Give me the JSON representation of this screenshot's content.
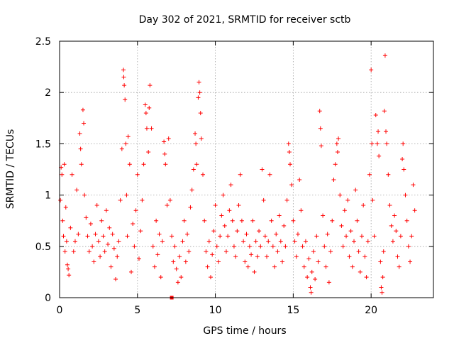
{
  "chart_data": {
    "type": "scatter",
    "title": "Day 302 of 2021, SRMTID for receiver sctb",
    "xlabel": "GPS time / hours",
    "ylabel": "SRMTID / TECUs",
    "xlim": [
      0,
      24
    ],
    "ylim": [
      0,
      2.5
    ],
    "xticks": [
      0,
      5,
      10,
      15,
      20
    ],
    "xtick_labels": [
      "0",
      "5",
      "10",
      "15",
      "20"
    ],
    "yticks": [
      0,
      0.5,
      1,
      1.5,
      2,
      2.5
    ],
    "ytick_labels": [
      "0",
      "0.5",
      "1",
      "1.5",
      "2",
      "2.5"
    ],
    "grid": true,
    "marker": "+",
    "color": "#ff0000",
    "series": [
      {
        "name": "SRMTID",
        "points": [
          [
            0.05,
            0.95
          ],
          [
            0.1,
            1.27
          ],
          [
            0.15,
            1.2
          ],
          [
            0.2,
            0.75
          ],
          [
            0.25,
            0.6
          ],
          [
            0.3,
            1.3
          ],
          [
            0.35,
            0.45
          ],
          [
            0.4,
            0.88
          ],
          [
            0.45,
            0.55
          ],
          [
            0.5,
            0.32
          ],
          [
            0.55,
            0.28
          ],
          [
            0.6,
            0.22
          ],
          [
            0.7,
            0.68
          ],
          [
            0.8,
            1.2
          ],
          [
            0.9,
            0.45
          ],
          [
            1.0,
            0.55
          ],
          [
            1.1,
            1.05
          ],
          [
            1.2,
            0.62
          ],
          [
            1.3,
            1.6
          ],
          [
            1.35,
            1.45
          ],
          [
            1.4,
            1.3
          ],
          [
            1.5,
            1.83
          ],
          [
            1.55,
            1.7
          ],
          [
            1.6,
            1.0
          ],
          [
            1.7,
            0.78
          ],
          [
            1.8,
            0.6
          ],
          [
            1.9,
            0.45
          ],
          [
            2.0,
            0.72
          ],
          [
            2.1,
            0.5
          ],
          [
            2.2,
            0.35
          ],
          [
            2.3,
            0.62
          ],
          [
            2.4,
            0.9
          ],
          [
            2.5,
            0.55
          ],
          [
            2.6,
            0.4
          ],
          [
            2.7,
            0.75
          ],
          [
            2.8,
            0.6
          ],
          [
            2.9,
            0.45
          ],
          [
            3.0,
            0.85
          ],
          [
            3.1,
            0.52
          ],
          [
            3.2,
            0.68
          ],
          [
            3.3,
            0.3
          ],
          [
            3.4,
            0.62
          ],
          [
            3.5,
            0.48
          ],
          [
            3.6,
            0.18
          ],
          [
            3.7,
            0.4
          ],
          [
            3.8,
            0.55
          ],
          [
            3.9,
            0.95
          ],
          [
            4.0,
            1.45
          ],
          [
            4.1,
            2.22
          ],
          [
            4.12,
            2.15
          ],
          [
            4.15,
            2.07
          ],
          [
            4.2,
            1.93
          ],
          [
            4.25,
            1.5
          ],
          [
            4.3,
            1.0
          ],
          [
            4.35,
            0.6
          ],
          [
            4.4,
            1.57
          ],
          [
            4.5,
            1.3
          ],
          [
            4.6,
            0.25
          ],
          [
            4.7,
            0.72
          ],
          [
            4.8,
            0.5
          ],
          [
            4.9,
            0.85
          ],
          [
            5.0,
            1.2
          ],
          [
            5.1,
            0.38
          ],
          [
            5.2,
            0.65
          ],
          [
            5.3,
            0.95
          ],
          [
            5.4,
            1.3
          ],
          [
            5.5,
            1.88
          ],
          [
            5.55,
            1.8
          ],
          [
            5.6,
            1.65
          ],
          [
            5.7,
            1.42
          ],
          [
            5.75,
            1.85
          ],
          [
            5.8,
            2.07
          ],
          [
            5.9,
            1.65
          ],
          [
            6.0,
            0.5
          ],
          [
            6.1,
            0.3
          ],
          [
            6.2,
            0.75
          ],
          [
            6.3,
            0.42
          ],
          [
            6.4,
            0.62
          ],
          [
            6.5,
            0.2
          ],
          [
            6.6,
            0.55
          ],
          [
            6.7,
            1.52
          ],
          [
            6.75,
            1.4
          ],
          [
            6.8,
            1.3
          ],
          [
            6.9,
            0.9
          ],
          [
            7.0,
            1.55
          ],
          [
            7.1,
            0.95
          ],
          [
            7.2,
            0.6
          ],
          [
            7.3,
            0.35
          ],
          [
            7.4,
            0.5
          ],
          [
            7.5,
            0.28
          ],
          [
            7.6,
            0.15
          ],
          [
            7.7,
            0.4
          ],
          [
            7.8,
            0.2
          ],
          [
            7.9,
            0.55
          ],
          [
            8.0,
            0.75
          ],
          [
            8.1,
            0.35
          ],
          [
            8.2,
            0.62
          ],
          [
            8.3,
            0.45
          ],
          [
            8.4,
            0.88
          ],
          [
            8.5,
            1.05
          ],
          [
            8.6,
            1.25
          ],
          [
            8.7,
            1.6
          ],
          [
            8.75,
            1.5
          ],
          [
            8.8,
            1.3
          ],
          [
            8.9,
            1.95
          ],
          [
            8.95,
            2.1
          ],
          [
            9.0,
            2.0
          ],
          [
            9.05,
            1.8
          ],
          [
            9.1,
            1.55
          ],
          [
            9.2,
            1.2
          ],
          [
            9.3,
            0.75
          ],
          [
            9.4,
            0.45
          ],
          [
            9.5,
            0.3
          ],
          [
            9.6,
            0.55
          ],
          [
            9.7,
            0.2
          ],
          [
            9.8,
            0.42
          ],
          [
            9.9,
            0.65
          ],
          [
            10.0,
            0.9
          ],
          [
            10.1,
            0.5
          ],
          [
            10.2,
            0.35
          ],
          [
            10.3,
            0.6
          ],
          [
            10.4,
            0.8
          ],
          [
            10.5,
            1.0
          ],
          [
            10.6,
            0.7
          ],
          [
            10.7,
            0.45
          ],
          [
            10.8,
            0.6
          ],
          [
            10.9,
            0.85
          ],
          [
            11.0,
            1.1
          ],
          [
            11.1,
            0.75
          ],
          [
            11.2,
            0.5
          ],
          [
            11.3,
            0.4
          ],
          [
            11.4,
            0.65
          ],
          [
            11.5,
            0.9
          ],
          [
            11.6,
            1.2
          ],
          [
            11.7,
            0.75
          ],
          [
            11.8,
            0.55
          ],
          [
            11.9,
            0.35
          ],
          [
            12.0,
            0.62
          ],
          [
            12.1,
            0.3
          ],
          [
            12.2,
            0.5
          ],
          [
            12.3,
            0.42
          ],
          [
            12.4,
            0.75
          ],
          [
            12.5,
            0.25
          ],
          [
            12.6,
            0.55
          ],
          [
            12.7,
            0.4
          ],
          [
            12.8,
            0.65
          ],
          [
            12.9,
            0.5
          ],
          [
            13.0,
            1.25
          ],
          [
            13.1,
            0.95
          ],
          [
            13.2,
            0.6
          ],
          [
            13.3,
            0.4
          ],
          [
            13.4,
            0.55
          ],
          [
            13.5,
            1.2
          ],
          [
            13.6,
            0.75
          ],
          [
            13.7,
            0.5
          ],
          [
            13.8,
            0.3
          ],
          [
            13.9,
            0.62
          ],
          [
            14.0,
            0.45
          ],
          [
            14.1,
            0.8
          ],
          [
            14.2,
            0.55
          ],
          [
            14.3,
            0.35
          ],
          [
            14.4,
            0.7
          ],
          [
            14.5,
            0.5
          ],
          [
            14.6,
            0.95
          ],
          [
            14.7,
            1.5
          ],
          [
            14.75,
            1.42
          ],
          [
            14.8,
            1.3
          ],
          [
            14.9,
            1.1
          ],
          [
            15.0,
            0.75
          ],
          [
            15.1,
            0.55
          ],
          [
            15.2,
            0.4
          ],
          [
            15.3,
            0.62
          ],
          [
            15.4,
            1.15
          ],
          [
            15.5,
            0.85
          ],
          [
            15.6,
            0.5
          ],
          [
            15.7,
            0.3
          ],
          [
            15.8,
            0.55
          ],
          [
            15.9,
            0.2
          ],
          [
            16.0,
            0.38
          ],
          [
            16.1,
            0.1
          ],
          [
            16.15,
            0.05
          ],
          [
            16.2,
            0.25
          ],
          [
            16.3,
            0.45
          ],
          [
            16.4,
            0.18
          ],
          [
            16.5,
            0.6
          ],
          [
            16.6,
            0.35
          ],
          [
            16.7,
            1.82
          ],
          [
            16.75,
            1.65
          ],
          [
            16.8,
            1.48
          ],
          [
            16.9,
            0.8
          ],
          [
            17.0,
            0.5
          ],
          [
            17.1,
            0.3
          ],
          [
            17.2,
            0.62
          ],
          [
            17.3,
            0.15
          ],
          [
            17.4,
            0.45
          ],
          [
            17.5,
            0.75
          ],
          [
            17.6,
            1.15
          ],
          [
            17.7,
            1.3
          ],
          [
            17.8,
            1.5
          ],
          [
            17.85,
            1.42
          ],
          [
            17.9,
            1.55
          ],
          [
            18.0,
            1.0
          ],
          [
            18.1,
            0.7
          ],
          [
            18.2,
            0.5
          ],
          [
            18.3,
            0.85
          ],
          [
            18.4,
            0.6
          ],
          [
            18.5,
            0.95
          ],
          [
            18.6,
            0.4
          ],
          [
            18.7,
            0.65
          ],
          [
            18.8,
            0.3
          ],
          [
            18.9,
            0.55
          ],
          [
            19.0,
            1.05
          ],
          [
            19.1,
            0.75
          ],
          [
            19.2,
            0.45
          ],
          [
            19.3,
            0.25
          ],
          [
            19.4,
            0.6
          ],
          [
            19.5,
            0.9
          ],
          [
            19.6,
            0.4
          ],
          [
            19.7,
            0.2
          ],
          [
            19.8,
            0.55
          ],
          [
            19.9,
            1.2
          ],
          [
            20.0,
            2.22
          ],
          [
            20.05,
            1.5
          ],
          [
            20.1,
            0.95
          ],
          [
            20.2,
            0.6
          ],
          [
            20.3,
            1.78
          ],
          [
            20.4,
            1.5
          ],
          [
            20.45,
            1.62
          ],
          [
            20.5,
            1.38
          ],
          [
            20.6,
            0.35
          ],
          [
            20.65,
            0.1
          ],
          [
            20.7,
            0.05
          ],
          [
            20.75,
            0.2
          ],
          [
            20.8,
            0.45
          ],
          [
            20.85,
            1.82
          ],
          [
            20.9,
            2.36
          ],
          [
            20.95,
            1.62
          ],
          [
            21.0,
            1.5
          ],
          [
            21.1,
            1.2
          ],
          [
            21.2,
            0.9
          ],
          [
            21.3,
            0.7
          ],
          [
            21.4,
            0.55
          ],
          [
            21.5,
            0.8
          ],
          [
            21.6,
            0.65
          ],
          [
            21.7,
            0.4
          ],
          [
            21.8,
            0.3
          ],
          [
            21.9,
            0.6
          ],
          [
            22.0,
            1.35
          ],
          [
            22.05,
            1.5
          ],
          [
            22.1,
            1.25
          ],
          [
            22.2,
            1.0
          ],
          [
            22.3,
            0.75
          ],
          [
            22.4,
            0.5
          ],
          [
            22.5,
            0.35
          ],
          [
            22.6,
            0.6
          ],
          [
            22.7,
            1.1
          ],
          [
            22.8,
            0.85
          ]
        ]
      }
    ],
    "isolated_markers": [
      {
        "x": 7.2,
        "y": 0.0,
        "shape": "square"
      }
    ]
  }
}
